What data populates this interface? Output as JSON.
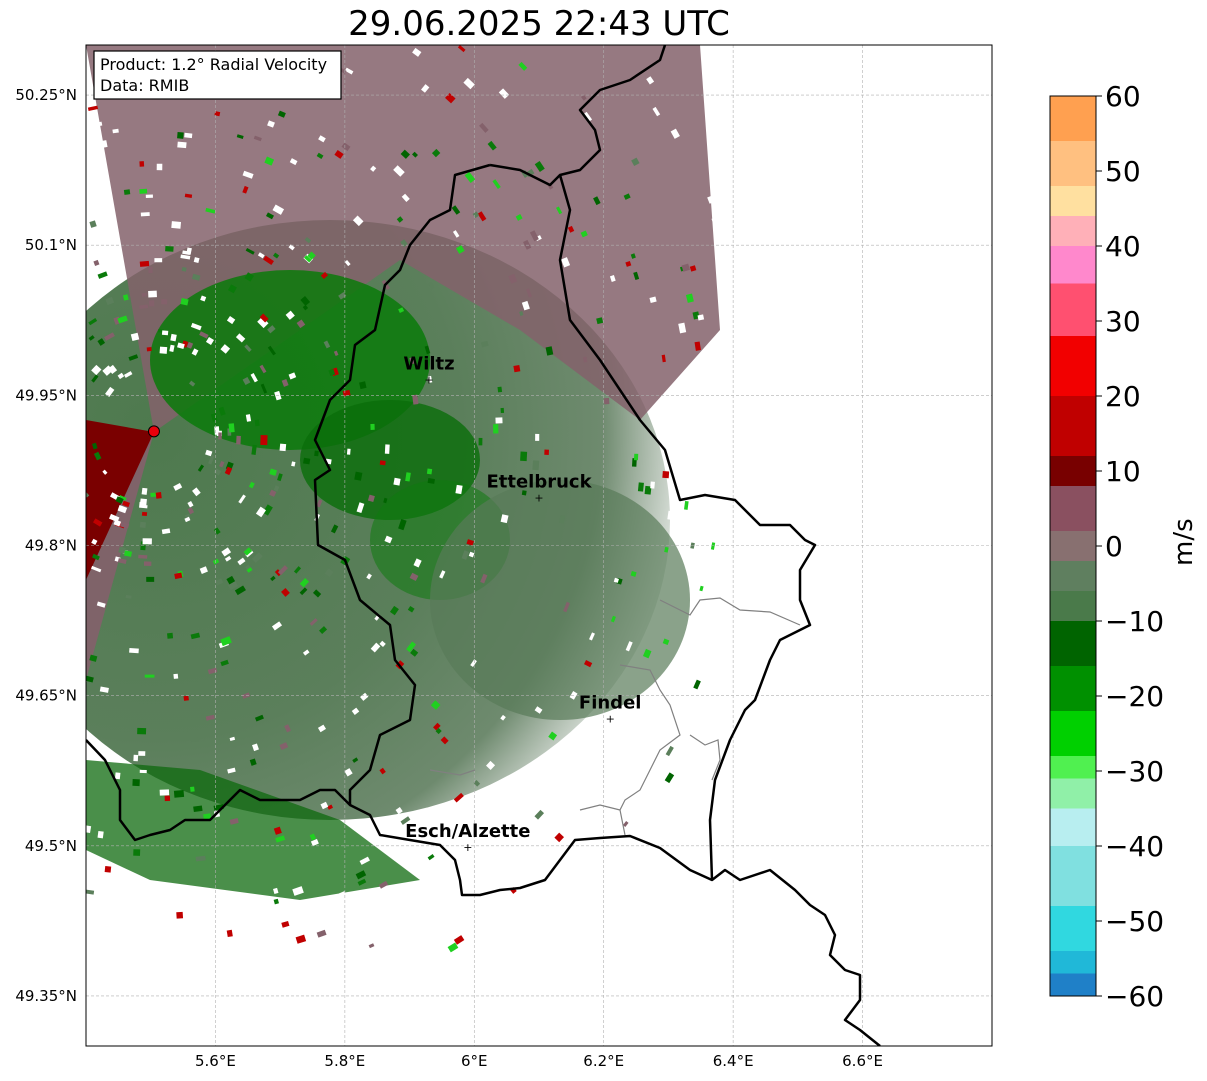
{
  "title": "29.06.2025 22:43 UTC",
  "info_box": {
    "product": "Product: 1.2° Radial Velocity",
    "data": "Data: RMIB"
  },
  "map": {
    "lon_range": [
      5.4,
      6.8
    ],
    "lat_range": [
      49.3,
      50.3
    ],
    "lat_ticks": [
      {
        "value": 50.25,
        "label": "50.25°N"
      },
      {
        "value": 50.1,
        "label": "50.1°N"
      },
      {
        "value": 49.95,
        "label": "49.95°N"
      },
      {
        "value": 49.8,
        "label": "49.8°N"
      },
      {
        "value": 49.65,
        "label": "49.65°N"
      },
      {
        "value": 49.5,
        "label": "49.5°N"
      },
      {
        "value": 49.35,
        "label": "49.35°N"
      }
    ],
    "lon_ticks": [
      {
        "value": 5.6,
        "label": "5.6°E"
      },
      {
        "value": 5.8,
        "label": "5.8°E"
      },
      {
        "value": 6.0,
        "label": "6°E"
      },
      {
        "value": 6.2,
        "label": "6.2°E"
      },
      {
        "value": 6.4,
        "label": "6.4°E"
      },
      {
        "value": 6.6,
        "label": "6.6°E"
      }
    ],
    "gridlines": true,
    "radar_site": {
      "lon": 5.505,
      "lat": 49.914,
      "color": "#e8000b"
    },
    "cities": [
      {
        "name": "Wiltz",
        "lon": 5.93,
        "lat": 49.966
      },
      {
        "name": "Ettelbruck",
        "lon": 6.1,
        "lat": 49.848
      },
      {
        "name": "Findel",
        "lon": 6.21,
        "lat": 49.627
      },
      {
        "name": "Esch/Alzette",
        "lon": 5.99,
        "lat": 49.499
      }
    ]
  },
  "colorbar": {
    "min": -60,
    "max": 60,
    "unit_label": "m/s",
    "tick_labels": [
      {
        "value": 60,
        "label": "60"
      },
      {
        "value": 50,
        "label": "50"
      },
      {
        "value": 40,
        "label": "40"
      },
      {
        "value": 30,
        "label": "30"
      },
      {
        "value": 20,
        "label": "20"
      },
      {
        "value": 10,
        "label": "10"
      },
      {
        "value": 0,
        "label": "0"
      },
      {
        "value": -10,
        "label": "−10"
      },
      {
        "value": -20,
        "label": "−20"
      },
      {
        "value": -30,
        "label": "−30"
      },
      {
        "value": -40,
        "label": "−40"
      },
      {
        "value": -50,
        "label": "−50"
      },
      {
        "value": -60,
        "label": "−60"
      }
    ],
    "color_stops": [
      {
        "from": 54,
        "to": 60,
        "color": "#ffa050"
      },
      {
        "from": 48,
        "to": 54,
        "color": "#ffc080"
      },
      {
        "from": 44,
        "to": 48,
        "color": "#ffe0a0"
      },
      {
        "from": 40,
        "to": 44,
        "color": "#ffb0b8"
      },
      {
        "from": 35,
        "to": 40,
        "color": "#ff88cc"
      },
      {
        "from": 28,
        "to": 35,
        "color": "#ff5070"
      },
      {
        "from": 20,
        "to": 28,
        "color": "#f20000"
      },
      {
        "from": 12,
        "to": 20,
        "color": "#c00000"
      },
      {
        "from": 8,
        "to": 12,
        "color": "#780000"
      },
      {
        "from": 2,
        "to": 8,
        "color": "#8a5060"
      },
      {
        "from": -2,
        "to": 2,
        "color": "#887070"
      },
      {
        "from": -6,
        "to": -2,
        "color": "#5f7f5f"
      },
      {
        "from": -10,
        "to": -6,
        "color": "#4a7a4a"
      },
      {
        "from": -16,
        "to": -10,
        "color": "#006400"
      },
      {
        "from": -22,
        "to": -16,
        "color": "#009000"
      },
      {
        "from": -28,
        "to": -22,
        "color": "#00d000"
      },
      {
        "from": -31,
        "to": -28,
        "color": "#50f050"
      },
      {
        "from": -35,
        "to": -31,
        "color": "#90f0a8"
      },
      {
        "from": -40,
        "to": -35,
        "color": "#b8eef0"
      },
      {
        "from": -48,
        "to": -40,
        "color": "#80e0e0"
      },
      {
        "from": -54,
        "to": -48,
        "color": "#30d8e0"
      },
      {
        "from": -57,
        "to": -54,
        "color": "#20b8d8"
      },
      {
        "from": -60,
        "to": -57,
        "color": "#1f80c8"
      }
    ]
  }
}
